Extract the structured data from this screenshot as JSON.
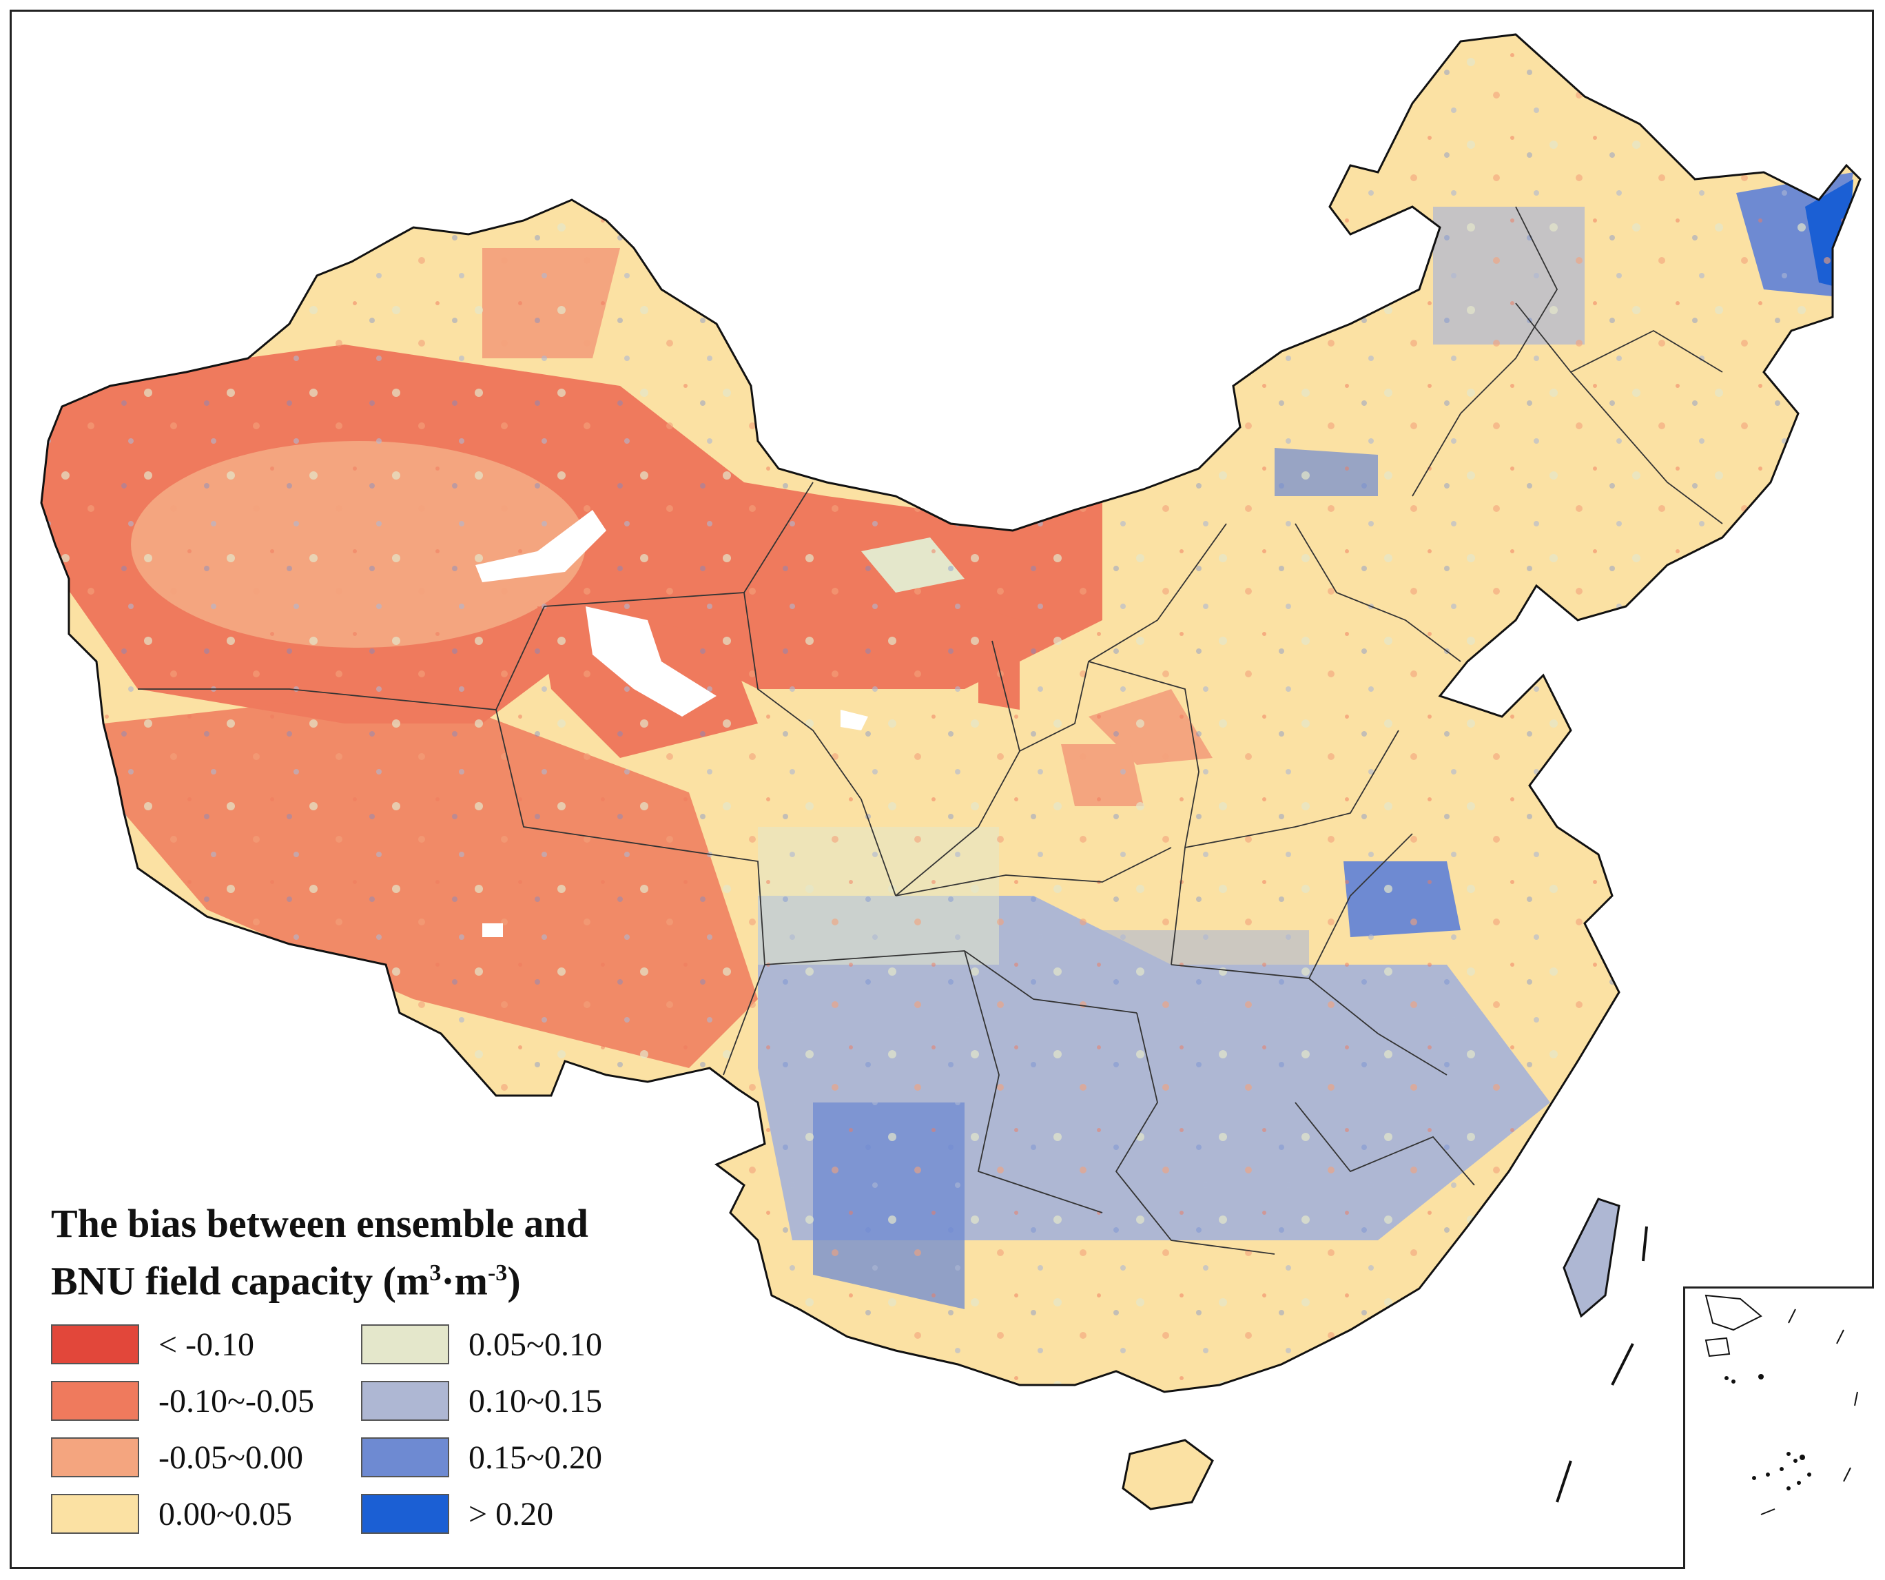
{
  "legend": {
    "title_line1": "The bias between ensemble  and",
    "title_line2": "BNU field capacity (m",
    "title_unit_sup1": "3",
    "title_unit_mid": "·m",
    "title_unit_sup2": "-3",
    "title_unit_end": ")",
    "items": [
      {
        "label": "< -0.10",
        "color": "#e2473a"
      },
      {
        "label": "0.05~0.10",
        "color": "#e4e7cb"
      },
      {
        "label": "-0.10~-0.05",
        "color": "#ef7a5d"
      },
      {
        "label": "0.10~0.15",
        "color": "#aeb7d3"
      },
      {
        "label": "-0.05~0.00",
        "color": "#f4a57f"
      },
      {
        "label": "0.15~0.20",
        "color": "#6e8ad2"
      },
      {
        "label": "0.00~0.05",
        "color": "#fbe1a3"
      },
      {
        "label": "> 0.20",
        "color": "#1b5fd4"
      }
    ]
  }
}
